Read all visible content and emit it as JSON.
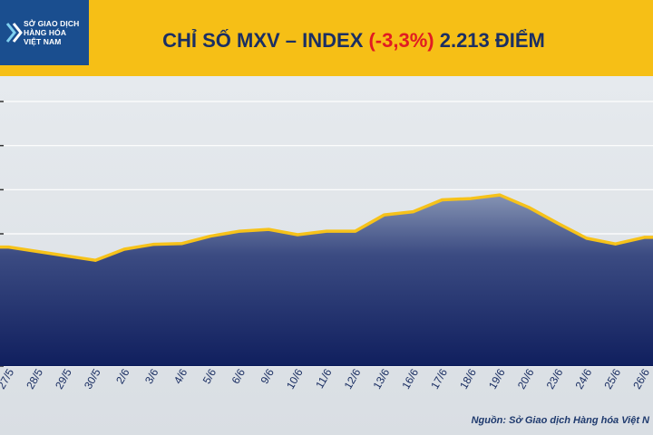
{
  "header": {
    "logo_line1": "SỞ GIAO DỊCH",
    "logo_line2": "HÀNG HÓA",
    "logo_line3": "VIỆT NAM",
    "title_prefix": "CHỈ SỐ MXV – INDEX ",
    "title_change": "(-3,3%)",
    "title_suffix": " 2.213 ĐIỂM"
  },
  "source": "Nguồn: Sở Giao dịch Hàng hóa Việt N",
  "colors": {
    "header_bg": "#f6bf16",
    "title": "#1b2f63",
    "change": "#e11b22",
    "line": "#f6c21a",
    "area_top": "#8593b3",
    "area_bottom": "#101f5e"
  },
  "chart_data": {
    "type": "area",
    "title": "CHỈ SỐ MXV – INDEX (-3,3%) 2.213 ĐIỂM",
    "categories": [
      "27/5",
      "28/5",
      "29/5",
      "30/5",
      "2/6",
      "3/6",
      "4/6",
      "5/6",
      "6/6",
      "9/6",
      "10/6",
      "11/6",
      "12/6",
      "13/6",
      "16/6",
      "17/6",
      "18/6",
      "19/6",
      "20/6",
      "23/6",
      "24/6",
      "25/6",
      "26/6"
    ],
    "series": [
      {
        "values": [
          2.7,
          2.6,
          2.5,
          2.4,
          2.65,
          2.76,
          2.78,
          2.95,
          3.06,
          3.1,
          2.98,
          3.06,
          3.06,
          3.43,
          3.5,
          3.77,
          3.8,
          3.88,
          3.6,
          3.24,
          2.9,
          2.77,
          2.92
        ]
      }
    ],
    "ylim": [
      0,
      6
    ],
    "grid": true,
    "x_range": [
      -0.3,
      22.3
    ]
  }
}
